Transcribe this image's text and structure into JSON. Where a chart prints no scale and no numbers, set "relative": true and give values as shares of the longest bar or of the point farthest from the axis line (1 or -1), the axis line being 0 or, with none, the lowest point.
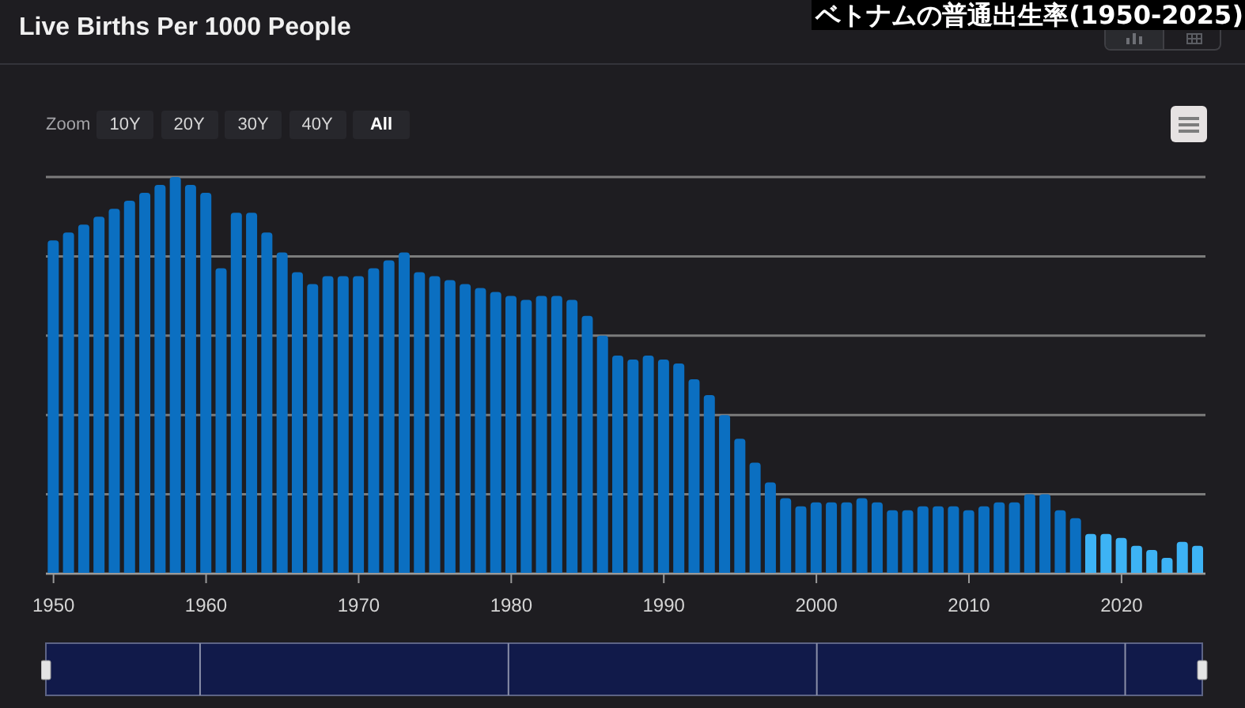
{
  "chart_data": {
    "type": "bar",
    "title": "Live Births Per 1000 People",
    "subtitle": "ベトナムの普通出生率(1950-2025)",
    "annotations": [
      "Zoom",
      "10Y",
      "20Y",
      "30Y",
      "40Y",
      "All"
    ],
    "categories": [
      "1950",
      null,
      null,
      null,
      null,
      null,
      null,
      null,
      null,
      null,
      "1960",
      null,
      null,
      null,
      null,
      null,
      null,
      null,
      null,
      null,
      "1970",
      null,
      null,
      null,
      null,
      null,
      null,
      null,
      null,
      null,
      "1980",
      null,
      null,
      null,
      null,
      null,
      null,
      null,
      null,
      null,
      "1990",
      null,
      null,
      null,
      null,
      null,
      null,
      null,
      null,
      null,
      "2000",
      null,
      null,
      null,
      null,
      null,
      null,
      null,
      null,
      null,
      "2010",
      null,
      null,
      null,
      null,
      null,
      null,
      null,
      null,
      null,
      "2020",
      null,
      null,
      null,
      null,
      null
    ],
    "values": [
      0.84,
      0.86,
      0.88,
      0.9,
      0.92,
      0.94,
      0.96,
      0.98,
      1,
      0.98,
      0.96,
      0.77,
      0.91,
      0.91,
      0.86,
      0.81,
      0.76,
      0.73,
      0.75,
      0.75,
      0.75,
      0.77,
      0.79,
      0.81,
      0.76,
      0.75,
      0.74,
      0.73,
      0.72,
      0.71,
      0.7,
      0.69,
      0.7,
      0.7,
      0.69,
      0.65,
      0.6,
      0.55,
      0.54,
      0.55,
      0.54,
      0.53,
      0.49,
      0.45,
      0.4,
      0.34,
      0.28,
      0.23,
      0.19,
      0.17,
      0.18,
      0.18,
      0.18,
      0.19,
      0.18,
      0.16,
      0.16,
      0.17,
      0.17,
      0.17,
      0.16,
      0.17,
      0.18,
      0.18,
      0.2,
      0.2,
      0.16,
      0.14,
      0.1,
      0.1,
      0.09,
      0.07,
      0.06,
      0.04,
      0.08,
      0.07
    ],
    "colors": [
      "#0b6fc1",
      "#0b6fc1",
      "#0b6fc1",
      "#0b6fc1",
      "#0b6fc1",
      "#0b6fc1",
      "#0b6fc1",
      "#0b6fc1",
      "#0b6fc1",
      "#0b6fc1",
      "#0b6fc1",
      "#0b6fc1",
      "#0b6fc1",
      "#0b6fc1",
      "#0b6fc1",
      "#0b6fc1",
      "#0b6fc1",
      "#0b6fc1",
      "#0b6fc1",
      "#0b6fc1",
      "#0b6fc1",
      "#0b6fc1",
      "#0b6fc1",
      "#0b6fc1",
      "#0b6fc1",
      "#0b6fc1",
      "#0b6fc1",
      "#0b6fc1",
      "#0b6fc1",
      "#0b6fc1",
      "#0b6fc1",
      "#0b6fc1",
      "#0b6fc1",
      "#0b6fc1",
      "#0b6fc1",
      "#0b6fc1",
      "#0b6fc1",
      "#0b6fc1",
      "#0b6fc1",
      "#0b6fc1",
      "#0b6fc1",
      "#0b6fc1",
      "#0b6fc1",
      "#0b6fc1",
      "#0b6fc1",
      "#0b6fc1",
      "#0b6fc1",
      "#0b6fc1",
      "#0b6fc1",
      "#0b6fc1",
      "#0b6fc1",
      "#0b6fc1",
      "#0b6fc1",
      "#0b6fc1",
      "#0b6fc1",
      "#0b6fc1",
      "#0b6fc1",
      "#0b6fc1",
      "#0b6fc1",
      "#0b6fc1",
      "#0b6fc1",
      "#0b6fc1",
      "#0b6fc1",
      "#0b6fc1",
      "#0b6fc1",
      "#0b6fc1",
      "#0b6fc1",
      "#0b6fc1",
      "#3db3f5",
      "#3db3f5",
      "#3db3f5",
      "#3db3f5",
      "#3db3f5",
      "#3db3f5",
      "#3db3f5",
      "#3db3f5"
    ],
    "relative": true,
    "grid": "y"
  }
}
